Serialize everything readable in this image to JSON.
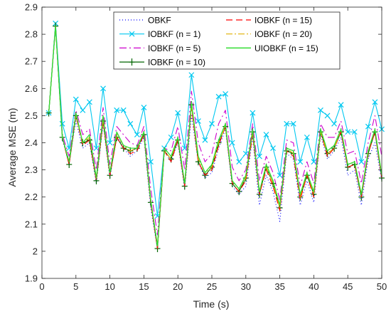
{
  "chart_data": {
    "type": "line",
    "title": "",
    "xlabel": "Time (s)",
    "ylabel": "Average MSE (m)",
    "xlim": [
      0,
      50
    ],
    "ylim": [
      1.9,
      2.9
    ],
    "xticks": [
      0,
      5,
      10,
      15,
      20,
      25,
      30,
      35,
      40,
      45,
      50
    ],
    "yticks": [
      1.9,
      2.0,
      2.1,
      2.2,
      2.3,
      2.4,
      2.5,
      2.6,
      2.7,
      2.8,
      2.9
    ],
    "xtick_labels": [
      "0",
      "5",
      "10",
      "15",
      "20",
      "25",
      "30",
      "35",
      "40",
      "45",
      "50"
    ],
    "ytick_labels": [
      "1.9",
      "2",
      "2.1",
      "2.2",
      "2.3",
      "2.4",
      "2.5",
      "2.6",
      "2.7",
      "2.8",
      "2.9"
    ],
    "grid": false,
    "legend_position": "top",
    "x": [
      1,
      2,
      3,
      4,
      5,
      6,
      7,
      8,
      9,
      10,
      11,
      12,
      13,
      14,
      15,
      16,
      17,
      18,
      19,
      20,
      21,
      22,
      23,
      24,
      25,
      26,
      27,
      28,
      29,
      30,
      31,
      32,
      33,
      34,
      35,
      36,
      37,
      38,
      39,
      40,
      41,
      42,
      43,
      44,
      45,
      46,
      47,
      48,
      49,
      50
    ],
    "series": [
      {
        "name": "OBKF",
        "color": "#0000ff",
        "dash": "1,3",
        "marker": "none",
        "values": [
          2.51,
          2.83,
          2.41,
          2.33,
          2.48,
          2.38,
          2.4,
          2.25,
          2.47,
          2.27,
          2.43,
          2.38,
          2.35,
          2.37,
          2.42,
          2.16,
          2.01,
          2.37,
          2.33,
          2.4,
          2.23,
          2.5,
          2.33,
          2.27,
          2.29,
          2.38,
          2.45,
          2.24,
          2.21,
          2.24,
          2.42,
          2.17,
          2.28,
          2.22,
          2.11,
          2.36,
          2.34,
          2.17,
          2.26,
          2.18,
          2.43,
          2.34,
          2.37,
          2.42,
          2.28,
          2.3,
          2.17,
          2.34,
          2.4,
          2.26
        ]
      },
      {
        "name": "IOBKF (n = 1)",
        "color": "#00c8f0",
        "dash": "",
        "marker": "x",
        "values": [
          2.51,
          2.84,
          2.47,
          2.38,
          2.56,
          2.52,
          2.55,
          2.38,
          2.6,
          2.4,
          2.52,
          2.52,
          2.47,
          2.43,
          2.53,
          2.33,
          2.13,
          2.38,
          2.42,
          2.51,
          2.38,
          2.65,
          2.48,
          2.41,
          2.47,
          2.57,
          2.58,
          2.4,
          2.33,
          2.36,
          2.51,
          2.35,
          2.43,
          2.38,
          2.28,
          2.47,
          2.47,
          2.33,
          2.42,
          2.33,
          2.52,
          2.5,
          2.47,
          2.54,
          2.44,
          2.44,
          2.33,
          2.46,
          2.55,
          2.45
        ]
      },
      {
        "name": "IOBKF (n = 5)",
        "color": "#cc00cc",
        "dash": "10,4,2,4",
        "marker": "none",
        "values": [
          2.51,
          2.83,
          2.43,
          2.35,
          2.52,
          2.43,
          2.45,
          2.3,
          2.53,
          2.32,
          2.46,
          2.43,
          2.4,
          2.39,
          2.46,
          2.23,
          2.06,
          2.38,
          2.37,
          2.46,
          2.3,
          2.59,
          2.4,
          2.33,
          2.36,
          2.47,
          2.52,
          2.31,
          2.26,
          2.3,
          2.47,
          2.26,
          2.35,
          2.29,
          2.19,
          2.41,
          2.4,
          2.24,
          2.33,
          2.25,
          2.47,
          2.42,
          2.42,
          2.48,
          2.36,
          2.37,
          2.25,
          2.4,
          2.5,
          2.35
        ]
      },
      {
        "name": "IOBKF (n = 10)",
        "color": "#006400",
        "dash": "",
        "marker": "plus",
        "values": [
          2.51,
          2.83,
          2.42,
          2.32,
          2.5,
          2.4,
          2.41,
          2.26,
          2.48,
          2.28,
          2.42,
          2.38,
          2.37,
          2.38,
          2.43,
          2.18,
          2.01,
          2.37,
          2.34,
          2.41,
          2.24,
          2.54,
          2.33,
          2.28,
          2.31,
          2.4,
          2.46,
          2.25,
          2.22,
          2.27,
          2.44,
          2.21,
          2.31,
          2.25,
          2.16,
          2.37,
          2.36,
          2.2,
          2.28,
          2.21,
          2.44,
          2.36,
          2.38,
          2.44,
          2.31,
          2.32,
          2.2,
          2.36,
          2.44,
          2.27
        ]
      },
      {
        "name": "IOBKF (n = 15)",
        "color": "#ff0000",
        "dash": "9,5",
        "marker": "none",
        "values": [
          2.51,
          2.83,
          2.42,
          2.32,
          2.5,
          2.39,
          2.41,
          2.26,
          2.48,
          2.28,
          2.42,
          2.38,
          2.36,
          2.37,
          2.43,
          2.18,
          2.01,
          2.37,
          2.33,
          2.41,
          2.24,
          2.53,
          2.33,
          2.28,
          2.3,
          2.39,
          2.46,
          2.25,
          2.22,
          2.26,
          2.43,
          2.21,
          2.3,
          2.24,
          2.15,
          2.37,
          2.35,
          2.19,
          2.28,
          2.2,
          2.44,
          2.35,
          2.38,
          2.44,
          2.31,
          2.32,
          2.2,
          2.36,
          2.44,
          2.27
        ]
      },
      {
        "name": "IOBKF (n = 20)",
        "color": "#e0b000",
        "dash": "9,3,2,3",
        "marker": "none",
        "values": [
          2.51,
          2.83,
          2.42,
          2.33,
          2.5,
          2.4,
          2.42,
          2.27,
          2.49,
          2.29,
          2.43,
          2.39,
          2.37,
          2.38,
          2.44,
          2.19,
          2.02,
          2.37,
          2.34,
          2.42,
          2.25,
          2.54,
          2.34,
          2.29,
          2.31,
          2.4,
          2.46,
          2.26,
          2.23,
          2.27,
          2.44,
          2.22,
          2.31,
          2.25,
          2.16,
          2.38,
          2.36,
          2.2,
          2.29,
          2.21,
          2.44,
          2.36,
          2.38,
          2.45,
          2.32,
          2.33,
          2.21,
          2.37,
          2.45,
          2.28
        ]
      },
      {
        "name": "UIOBKF (n = 15)",
        "color": "#33dd33",
        "dash": "",
        "marker": "none",
        "values": [
          2.51,
          2.83,
          2.42,
          2.33,
          2.51,
          2.4,
          2.43,
          2.27,
          2.5,
          2.29,
          2.44,
          2.39,
          2.38,
          2.38,
          2.44,
          2.19,
          2.02,
          2.38,
          2.35,
          2.42,
          2.25,
          2.55,
          2.35,
          2.29,
          2.32,
          2.41,
          2.47,
          2.26,
          2.23,
          2.28,
          2.45,
          2.22,
          2.32,
          2.26,
          2.17,
          2.38,
          2.37,
          2.21,
          2.29,
          2.22,
          2.45,
          2.37,
          2.39,
          2.45,
          2.32,
          2.33,
          2.21,
          2.37,
          2.45,
          2.28
        ]
      }
    ]
  }
}
